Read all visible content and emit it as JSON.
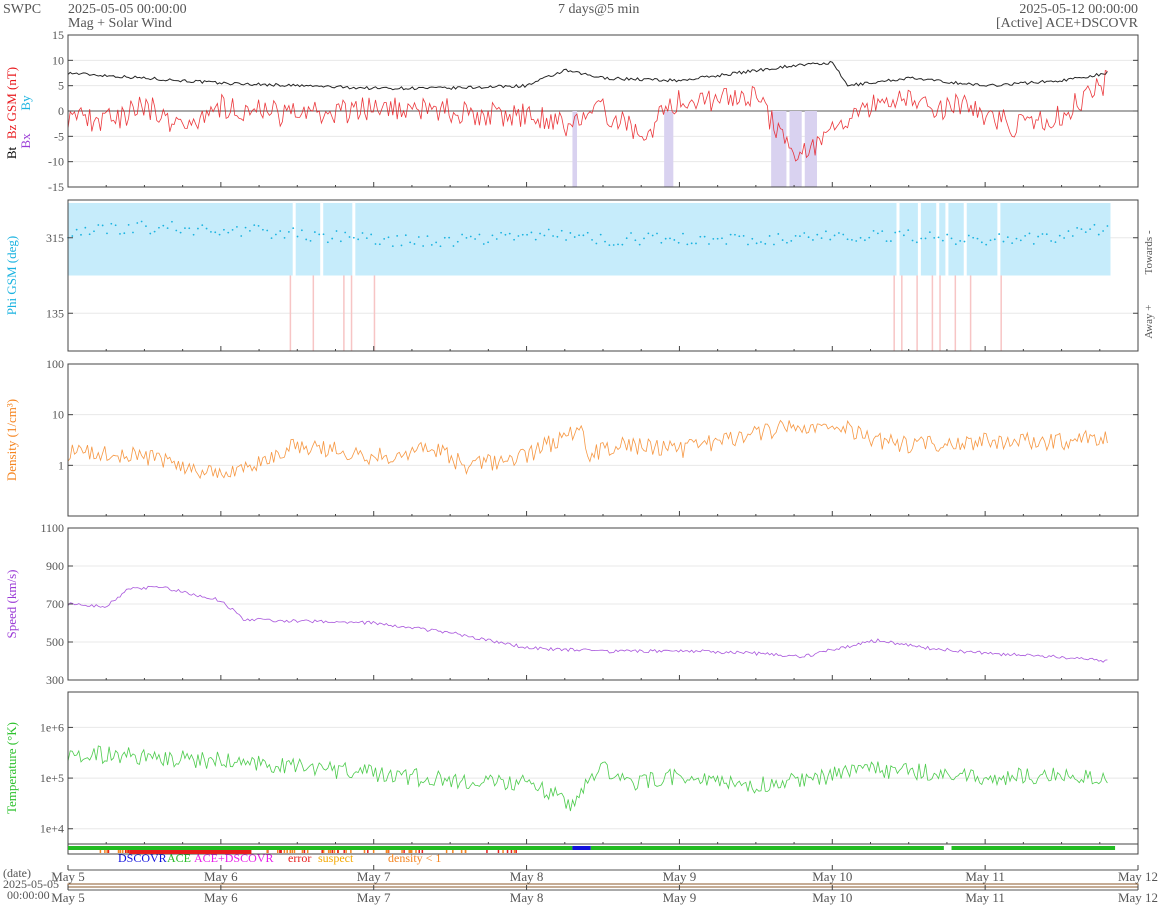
{
  "header": {
    "brand": "SWPC",
    "start": "2025-05-05 00:00:00",
    "subtitle": "Mag + Solar Wind",
    "span": "7 days@5 min",
    "end": "2025-05-12 00:00:00",
    "source": "[Active] ACE+DSCOVR"
  },
  "legend": {
    "dscovr": "DSCOVR",
    "ace": "ACE",
    "combined": "ACE+DSCOVR",
    "error": "error",
    "suspect": "suspect",
    "density": "density < 1"
  },
  "date_label": {
    "prefix": "(date)",
    "date": "2025-05-05",
    "time": "00:00:00"
  },
  "colors": {
    "bt": "#000000",
    "bz": "#e8181c",
    "phi": "#1ab3e0",
    "phi_band": "#c6ecfb",
    "density": "#f58521",
    "speed": "#9a3ad6",
    "temperature": "#2ec22e",
    "bz_south_band": "#d9d2f0",
    "phi_flip_band": "#f7c5c5",
    "ace": "#22bb22",
    "dscovr": "#1111dd",
    "error": "#e81c1c",
    "suspect": "#f5a800",
    "combined": "#e81ce8"
  },
  "chart_data": {
    "type": "line",
    "x_range": [
      "2025-05-05 00:00",
      "2025-05-12 00:00"
    ],
    "x_ticks": [
      "May 5",
      "May 6",
      "May 7",
      "May 8",
      "May 9",
      "May 10",
      "May 11",
      "May 12"
    ],
    "panels": [
      {
        "id": "mag",
        "ylabel_parts": [
          "Bt",
          "Bz GSM (nT)",
          "Bx",
          "By"
        ],
        "ylim": [
          -15,
          15
        ],
        "yticks": [
          15,
          10,
          5,
          0,
          -5,
          -10,
          -15
        ],
        "series": [
          {
            "name": "Bt",
            "x_days": [
              0,
              0.5,
              1,
              1.5,
              2,
              2.5,
              3,
              3.25,
              3.5,
              4,
              4.5,
              4.75,
              5,
              5.1,
              5.5,
              6,
              6.5,
              6.8
            ],
            "values": [
              7.5,
              6.5,
              5.5,
              5,
              4.5,
              4.5,
              5,
              8,
              6.5,
              6,
              8,
              9,
              9.5,
              5,
              6.5,
              5,
              6,
              7.5
            ]
          },
          {
            "name": "Bz GSM",
            "x_days": [
              0,
              0.25,
              0.5,
              0.75,
              1,
              1.5,
              2,
              2.5,
              3,
              3.3,
              3.5,
              3.75,
              4,
              4.5,
              4.7,
              4.85,
              5.1,
              5.4,
              5.6,
              5.85,
              6.2,
              6.5,
              6.8
            ],
            "values": [
              -1,
              -2,
              1,
              -3,
              1,
              -1,
              0.5,
              0,
              -1,
              -3,
              0,
              -5,
              2,
              3,
              -7,
              -8.5,
              -2,
              3,
              0.5,
              1,
              -3,
              -1,
              6
            ]
          }
        ]
      },
      {
        "id": "phi",
        "ylabel": "Phi GSM (deg)",
        "ylim": [
          45,
          405
        ],
        "yticks": [
          315,
          135
        ],
        "right_labels": [
          "Towards -",
          "Away +"
        ],
        "series": [
          {
            "name": "Phi GSM",
            "x_days": [
              0,
              0.5,
              1,
              1.5,
              2,
              2.5,
              3,
              3.5,
              4,
              4.5,
              5,
              5.5,
              6,
              6.5,
              6.8
            ],
            "values": [
              330,
              340,
              335,
              325,
              310,
              305,
              325,
              310,
              315,
              305,
              320,
              320,
              310,
              315,
              340
            ]
          }
        ]
      },
      {
        "id": "density",
        "ylabel": "Density (1/cm³)",
        "scale": "log",
        "ylim": [
          0.1,
          100
        ],
        "yticks": [
          100,
          10,
          1
        ],
        "series": [
          {
            "name": "Density",
            "x_days": [
              0,
              0.5,
              0.8,
              1.2,
              1.5,
              2,
              2.4,
              2.6,
              3,
              3.2,
              3.35,
              3.4,
              3.6,
              4,
              4.3,
              4.6,
              5,
              5.3,
              5.5,
              6,
              6.5,
              6.8
            ],
            "values": [
              1.8,
              1.5,
              0.8,
              0.8,
              2.5,
              1.5,
              2,
              0.9,
              1.5,
              3,
              5,
              1.6,
              2.5,
              2,
              3,
              5,
              6,
              3,
              2.5,
              3,
              3,
              3.5
            ]
          }
        ]
      },
      {
        "id": "speed",
        "ylabel": "Speed (km/s)",
        "ylim": [
          300,
          1100
        ],
        "yticks": [
          1100,
          900,
          700,
          500,
          300
        ],
        "series": [
          {
            "name": "Speed",
            "x_days": [
              0,
              0.25,
              0.4,
              0.6,
              1,
              1.15,
              1.5,
              2,
              2.5,
              3,
              3.5,
              4,
              4.5,
              4.8,
              5,
              5.3,
              5.6,
              6,
              6.5,
              6.8
            ],
            "values": [
              700,
              690,
              780,
              790,
              720,
              620,
              610,
              600,
              550,
              470,
              450,
              455,
              440,
              420,
              460,
              510,
              470,
              440,
              420,
              400
            ]
          }
        ]
      },
      {
        "id": "temperature",
        "ylabel": "Temperature (°K)",
        "scale": "log",
        "ylim": [
          5000,
          5000000
        ],
        "yticks": [
          1000000,
          100000,
          10000
        ],
        "ytick_labels": [
          "1e+6",
          "1e+5",
          "1e+4"
        ],
        "series": [
          {
            "name": "Temperature",
            "x_days": [
              0,
              0.5,
              1,
              1.5,
              2,
              2.5,
              3,
              3.3,
              3.5,
              3.7,
              4,
              4.5,
              5,
              5.2,
              5.5,
              6,
              6.5,
              6.8
            ],
            "values": [
              320000,
              260000,
              220000,
              170000,
              120000,
              90000,
              80000,
              30000,
              150000,
              80000,
              110000,
              70000,
              110000,
              150000,
              140000,
              100000,
              120000,
              85000
            ]
          }
        ]
      }
    ],
    "source_bar": {
      "segments": [
        {
          "source": "ACE",
          "from_day": 0,
          "to_day": 3.3
        },
        {
          "source": "DSCOVR",
          "from_day": 3.3,
          "to_day": 3.42
        },
        {
          "source": "ACE",
          "from_day": 3.42,
          "to_day": 5.73
        },
        {
          "source": "ACE",
          "from_day": 5.78,
          "to_day": 6.85
        }
      ]
    }
  }
}
